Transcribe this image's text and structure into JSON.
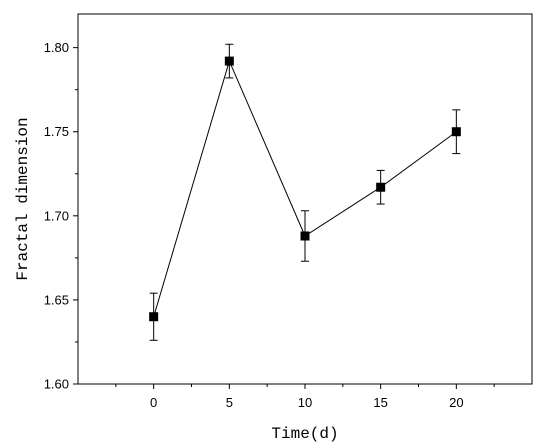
{
  "chart_data": {
    "type": "line",
    "title": "",
    "xlabel": "Time(d)",
    "ylabel": "Fractal dimension",
    "xlim": [
      -5,
      25
    ],
    "ylim": [
      1.6,
      1.82
    ],
    "x_ticks": [
      0,
      5,
      10,
      15,
      20
    ],
    "y_ticks": [
      1.6,
      1.65,
      1.7,
      1.75,
      1.8
    ],
    "x_tick_labels": [
      "0",
      "5",
      "10",
      "15",
      "20"
    ],
    "y_tick_labels": [
      "1.60",
      "1.65",
      "1.70",
      "1.75",
      "1.80"
    ],
    "grid": false,
    "legend": "none",
    "series": [
      {
        "x": [
          0,
          5,
          10,
          15,
          20
        ],
        "y": [
          1.64,
          1.792,
          1.688,
          1.717,
          1.75
        ],
        "error": [
          0.014,
          0.01,
          0.015,
          0.01,
          0.013
        ],
        "marker": "square",
        "color": "#000000"
      }
    ]
  }
}
